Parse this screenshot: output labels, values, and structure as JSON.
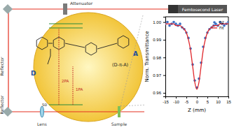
{
  "labels": {
    "attenuator": "Attenuator",
    "laser": "Femtosecond Laser",
    "reflector_top": "Reflector",
    "reflector_bottom": "Reflector",
    "lens": "Lens",
    "sample": "Sample",
    "donor": "D",
    "acceptor": "A",
    "molecule": "(D-π-A)",
    "upper_transition": "2PA",
    "lower_transition": "1PA",
    "ground_state": "S0"
  },
  "chart_data": {
    "type": "line",
    "xlabel": "Z (mm)",
    "ylabel": "Norm. Transmittance",
    "x": [
      -15,
      -14,
      -13,
      -12,
      -11,
      -10,
      -9,
      -8,
      -7,
      -6,
      -5,
      -4,
      -3,
      -2,
      -1,
      0,
      1,
      2,
      3,
      4,
      5,
      6,
      7,
      8,
      9,
      10,
      11,
      12,
      13,
      14,
      15
    ],
    "series": [
      {
        "name": "02",
        "type": "scatter",
        "marker": "circle",
        "color": "#3a6fc4",
        "values": [
          0.999,
          1.0,
          0.998,
          0.999,
          1.0,
          0.999,
          0.998,
          0.999,
          0.997,
          0.996,
          0.994,
          0.991,
          0.985,
          0.976,
          0.967,
          0.963,
          0.968,
          0.977,
          0.986,
          0.991,
          0.994,
          0.996,
          0.997,
          0.998,
          0.999,
          0.998,
          1.0,
          0.999,
          0.998,
          0.999,
          1.0
        ]
      },
      {
        "name": "Fit",
        "type": "line",
        "line_style": "solid",
        "color": "#e0262b",
        "values": [
          0.999,
          0.999,
          0.999,
          0.999,
          0.999,
          0.998,
          0.998,
          0.998,
          0.997,
          0.996,
          0.994,
          0.99,
          0.984,
          0.975,
          0.966,
          0.962,
          0.966,
          0.975,
          0.984,
          0.99,
          0.994,
          0.996,
          0.997,
          0.998,
          0.998,
          0.998,
          0.999,
          0.999,
          0.999,
          0.999,
          0.999
        ]
      }
    ],
    "xlim": [
      -15,
      15
    ],
    "xticks": [
      -15,
      -10,
      -5,
      0,
      5,
      10,
      15
    ],
    "ylim": [
      0.958,
      1.003
    ],
    "yticks": [
      0.96,
      0.97,
      0.98,
      0.99,
      {
        "value": 1,
        "label": "1.00"
      }
    ],
    "legend": "upper right",
    "grid": false
  }
}
